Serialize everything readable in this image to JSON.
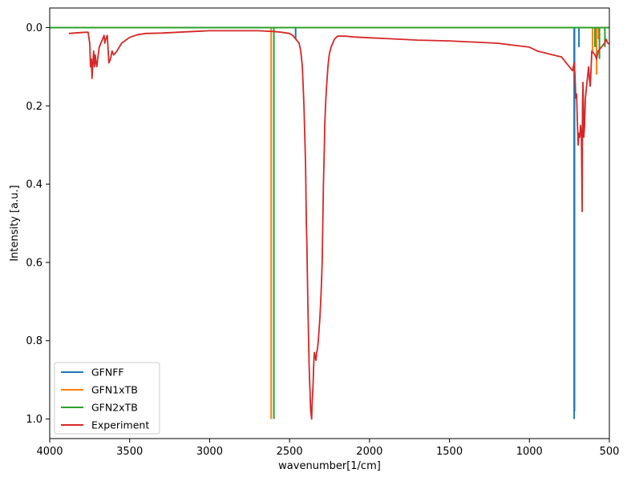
{
  "chart_data": {
    "type": "line",
    "title": "",
    "xlabel": "wavenumber[1/cm]",
    "ylabel": "Intensity [a.u.]",
    "xlim": [
      4000,
      500
    ],
    "ylim": [
      1.05,
      -0.05
    ],
    "y_inverted": true,
    "grid": false,
    "legend_position": "lower-left",
    "xticks": [
      4000,
      3500,
      3000,
      2500,
      2000,
      1500,
      1000,
      500
    ],
    "xtick_labels": [
      "4000",
      "3500",
      "3000",
      "2500",
      "2000",
      "1500",
      "1000",
      "500"
    ],
    "yticks": [
      0.0,
      0.2,
      0.4,
      0.6,
      0.8,
      1.0
    ],
    "ytick_labels": [
      "0.0",
      "0.2",
      "0.4",
      "0.6",
      "0.8",
      "1.0"
    ],
    "series": [
      {
        "name": "GFNFF",
        "color": "#1f77b4",
        "style": "stick",
        "x": [
          2462,
          720,
          718,
          690
        ],
        "y": [
          0.03,
          1.0,
          0.98,
          0.05
        ]
      },
      {
        "name": "GFN1xTB",
        "color": "#ff7f0e",
        "style": "stick",
        "x": [
          2615,
          605,
          580,
          568
        ],
        "y": [
          1.0,
          0.06,
          0.12,
          0.03
        ]
      },
      {
        "name": "GFN2xTB",
        "color": "#2ca02c",
        "style": "stick",
        "x": [
          2598,
          590,
          562,
          528
        ],
        "y": [
          1.0,
          0.05,
          0.08,
          0.05
        ]
      },
      {
        "name": "Experiment",
        "color": "#d62728",
        "style": "line",
        "x": [
          3880,
          3780,
          3760,
          3750,
          3745,
          3740,
          3735,
          3730,
          3725,
          3720,
          3715,
          3710,
          3705,
          3700,
          3690,
          3680,
          3670,
          3660,
          3655,
          3650,
          3640,
          3630,
          3620,
          3610,
          3600,
          3580,
          3550,
          3500,
          3450,
          3400,
          3300,
          3200,
          3100,
          3000,
          2900,
          2800,
          2700,
          2650,
          2600,
          2550,
          2500,
          2480,
          2460,
          2440,
          2430,
          2420,
          2410,
          2400,
          2395,
          2392,
          2388,
          2385,
          2382,
          2380,
          2378,
          2375,
          2372,
          2370,
          2368,
          2365,
          2362,
          2360,
          2358,
          2355,
          2352,
          2350,
          2348,
          2345,
          2340,
          2335,
          2330,
          2325,
          2320,
          2315,
          2310,
          2305,
          2300,
          2296,
          2292,
          2290,
          2288,
          2285,
          2282,
          2280,
          2275,
          2270,
          2265,
          2260,
          2255,
          2250,
          2240,
          2230,
          2220,
          2200,
          2150,
          2100,
          2000,
          1900,
          1800,
          1700,
          1600,
          1500,
          1400,
          1300,
          1200,
          1100,
          1000,
          950,
          900,
          850,
          800,
          750,
          730,
          720,
          715,
          710,
          705,
          700,
          695,
          690,
          685,
          680,
          675,
          670,
          668,
          665,
          662,
          660,
          655,
          650,
          645,
          640,
          635,
          630,
          625,
          620,
          615,
          610,
          600,
          590,
          580,
          570,
          560,
          550,
          540,
          530,
          520,
          510,
          500
        ],
        "y": [
          0.015,
          0.012,
          0.012,
          0.04,
          0.1,
          0.08,
          0.13,
          0.09,
          0.06,
          0.1,
          0.07,
          0.09,
          0.1,
          0.08,
          0.05,
          0.04,
          0.03,
          0.02,
          0.04,
          0.03,
          0.02,
          0.09,
          0.08,
          0.06,
          0.07,
          0.06,
          0.04,
          0.025,
          0.018,
          0.015,
          0.014,
          0.012,
          0.01,
          0.008,
          0.008,
          0.008,
          0.008,
          0.009,
          0.01,
          0.012,
          0.015,
          0.02,
          0.03,
          0.04,
          0.06,
          0.1,
          0.2,
          0.35,
          0.5,
          0.55,
          0.65,
          0.72,
          0.78,
          0.82,
          0.86,
          0.9,
          0.93,
          0.96,
          0.98,
          0.99,
          1.0,
          0.97,
          0.95,
          0.93,
          0.9,
          0.87,
          0.85,
          0.83,
          0.84,
          0.85,
          0.83,
          0.82,
          0.8,
          0.77,
          0.74,
          0.7,
          0.65,
          0.6,
          0.5,
          0.45,
          0.4,
          0.35,
          0.3,
          0.25,
          0.2,
          0.16,
          0.13,
          0.1,
          0.08,
          0.065,
          0.05,
          0.04,
          0.03,
          0.022,
          0.022,
          0.024,
          0.026,
          0.028,
          0.03,
          0.032,
          0.033,
          0.034,
          0.036,
          0.038,
          0.04,
          0.045,
          0.05,
          0.06,
          0.065,
          0.07,
          0.075,
          0.1,
          0.11,
          0.09,
          0.12,
          0.18,
          0.17,
          0.24,
          0.3,
          0.27,
          0.28,
          0.25,
          0.27,
          0.47,
          0.2,
          0.14,
          0.2,
          0.28,
          0.25,
          0.18,
          0.16,
          0.14,
          0.12,
          0.1,
          0.13,
          0.15,
          0.11,
          0.06,
          0.065,
          0.07,
          0.08,
          0.06,
          0.055,
          0.05,
          0.045,
          0.04,
          0.03,
          0.04,
          0.042
        ]
      }
    ]
  }
}
